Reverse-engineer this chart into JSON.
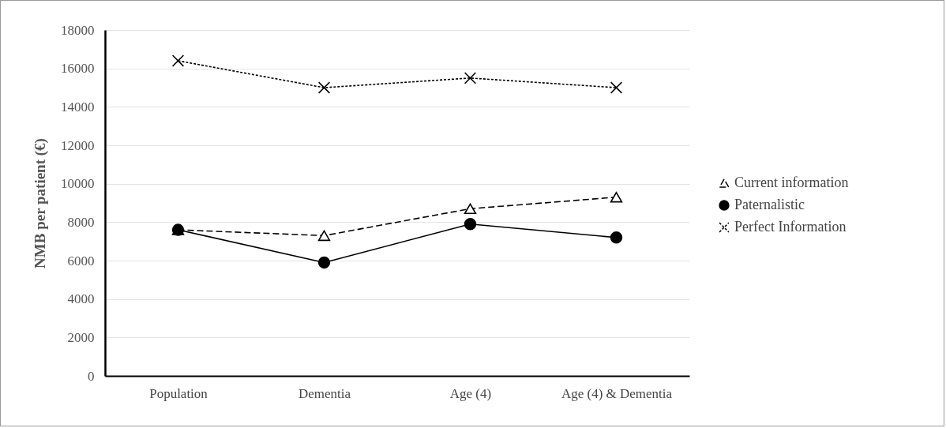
{
  "chart_data": {
    "type": "line",
    "ylabel": "NMB per patient (€)",
    "categories": [
      "Population",
      "Dementia",
      "Age (4)",
      "Age (4) & Dementia"
    ],
    "series": [
      {
        "name": "Current information",
        "color": "#000000",
        "marker": "triangle",
        "line_style": "dashed",
        "values": [
          7600,
          7300,
          8700,
          9300
        ]
      },
      {
        "name": "Paternalistic",
        "color": "#000000",
        "marker": "circle",
        "line_style": "solid",
        "values": [
          7600,
          5900,
          7900,
          7200
        ]
      },
      {
        "name": "Perfect Information",
        "color": "#000000",
        "marker": "cross",
        "line_style": "dotted",
        "values": [
          16400,
          15000,
          15500,
          15000
        ]
      }
    ],
    "ylim": [
      0,
      18000
    ],
    "yticks": [
      0,
      2000,
      4000,
      6000,
      8000,
      10000,
      12000,
      14000,
      16000,
      18000
    ],
    "grid": "y",
    "legend": "right"
  }
}
